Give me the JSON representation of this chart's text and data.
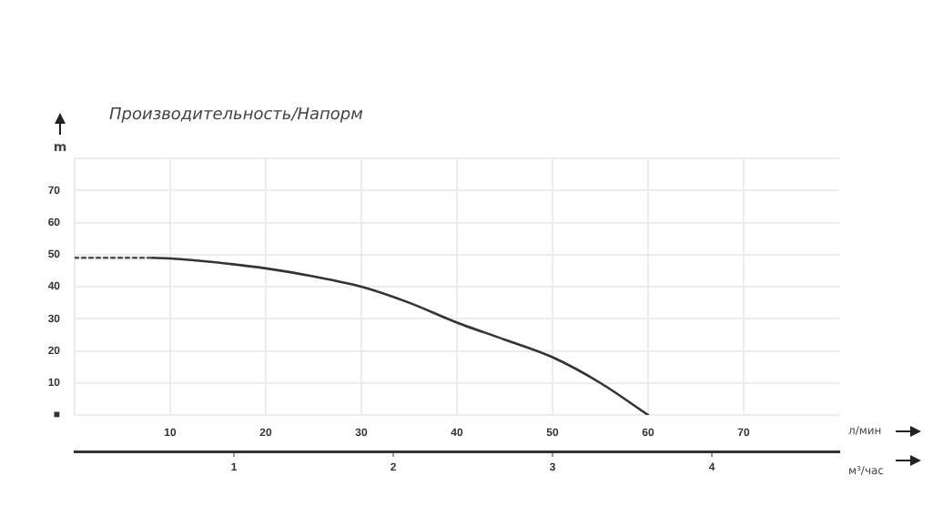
{
  "chart_data": {
    "type": "line",
    "title": "Производительность/Напорм",
    "xlabel": "л/мин",
    "ylabel": "m",
    "x2label": "м³/час",
    "xlim": [
      0,
      80
    ],
    "xticks": [
      {
        "value": 0,
        "label": null
      },
      10,
      20,
      30,
      40,
      50,
      60,
      70
    ],
    "ylim": [
      0,
      80
    ],
    "yticks": [
      {
        "value": 0,
        "label": "■"
      },
      10,
      20,
      30,
      40,
      50,
      60,
      70,
      {
        "value": 80,
        "label": null
      }
    ],
    "x2lim": [
      0,
      4.8
    ],
    "x2ticks": [
      1,
      2,
      3,
      4
    ],
    "grid": true,
    "marker": "none",
    "series": [
      {
        "color": "#555555",
        "line_style": "dotted",
        "x": [
          0,
          4,
          8
        ],
        "values": [
          49,
          49,
          49
        ]
      },
      {
        "color": "#333333",
        "line_style": "solid",
        "x": [
          8,
          10,
          15,
          20,
          25,
          30,
          35,
          40,
          45,
          50,
          55,
          60
        ],
        "values": [
          49,
          48.8,
          47.5,
          45.7,
          43.2,
          40,
          35,
          28.8,
          23.5,
          18,
          10,
          0
        ]
      }
    ]
  }
}
